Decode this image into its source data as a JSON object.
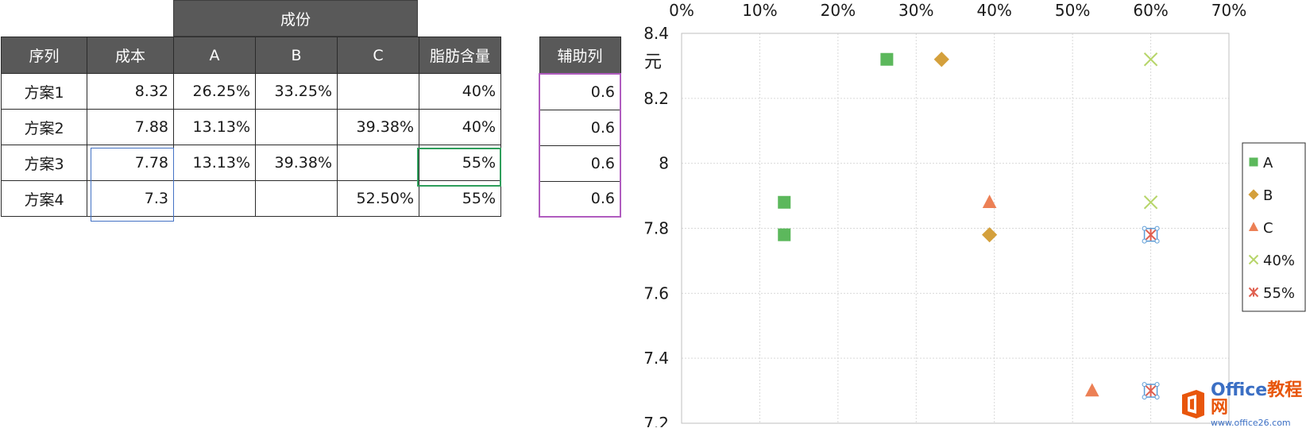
{
  "table": {
    "group_header": "成份",
    "headers": [
      "序列",
      "成本",
      "A",
      "B",
      "C",
      "脂肪含量"
    ],
    "rows": [
      [
        "方案1",
        "8.32",
        "26.25%",
        "33.25%",
        "",
        "40%"
      ],
      [
        "方案2",
        "7.88",
        "13.13%",
        "",
        "39.38%",
        "40%"
      ],
      [
        "方案3",
        "7.78",
        "13.13%",
        "39.38%",
        "",
        "55%"
      ],
      [
        "方案4",
        "7.3",
        "",
        "",
        "52.50%",
        "55%"
      ]
    ]
  },
  "aux_table": {
    "header": "辅助列",
    "values": [
      "0.6",
      "0.6",
      "0.6",
      "0.6"
    ]
  },
  "chart_data": {
    "type": "scatter",
    "ylabel": "元",
    "xlim": [
      0,
      0.7
    ],
    "ylim": [
      7.2,
      8.4
    ],
    "x_ticks": [
      "0%",
      "10%",
      "20%",
      "30%",
      "40%",
      "50%",
      "60%",
      "70%"
    ],
    "y_ticks": [
      "7.2",
      "7.4",
      "7.6",
      "7.8",
      "8",
      "8.2",
      "8.4"
    ],
    "x_axis_position": "top",
    "grid": true,
    "legend_position": "right",
    "series": [
      {
        "name": "A",
        "marker": "square",
        "color": "#5cb85c",
        "points": [
          [
            0.2625,
            8.32
          ],
          [
            0.1313,
            7.88
          ],
          [
            0.1313,
            7.78
          ]
        ]
      },
      {
        "name": "B",
        "marker": "diamond",
        "color": "#d4a03c",
        "points": [
          [
            0.3325,
            8.32
          ],
          [
            0.3938,
            7.78
          ]
        ]
      },
      {
        "name": "C",
        "marker": "triangle",
        "color": "#ec8055",
        "points": [
          [
            0.3938,
            7.88
          ],
          [
            0.525,
            7.3
          ]
        ]
      },
      {
        "name": "40%",
        "marker": "x",
        "color": "#b7d56a",
        "points": [
          [
            0.6,
            8.32
          ],
          [
            0.6,
            7.88
          ]
        ]
      },
      {
        "name": "55%",
        "marker": "star",
        "color": "#e06050",
        "points": [
          [
            0.6,
            7.78
          ],
          [
            0.6,
            7.3
          ]
        ]
      }
    ]
  },
  "logo": {
    "name_main": "Office",
    "name_accent": "教程网",
    "url": "www.office26.com"
  }
}
